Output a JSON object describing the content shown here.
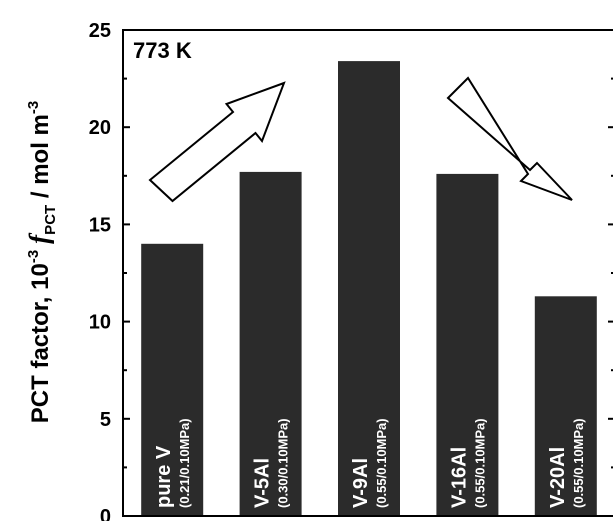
{
  "chart_data": {
    "type": "bar",
    "categories": [
      "pure V",
      "V-5Al",
      "V-9Al",
      "V-16Al",
      "V-20Al"
    ],
    "conditions": [
      "(0.21/0.10MPa)",
      "(0.30/0.10MPa)",
      "(0.55/0.10MPa)",
      "(0.55/0.10MPa)",
      "(0.55/0.10MPa)"
    ],
    "values": [
      14.0,
      17.7,
      23.4,
      17.6,
      11.3
    ],
    "ylim": [
      0,
      25
    ],
    "yticks": [
      0,
      5,
      10,
      15,
      20,
      25
    ],
    "ylabel": {
      "prefix": "PCT factor, 10",
      "exponent": "-3",
      "symbol": "f",
      "subscript": "PCT",
      "unit": " / mol m",
      "unit_exponent": "-3"
    },
    "annotation": "773 K",
    "grid": false,
    "colors": {
      "bar": "#2b2b2b",
      "bar_text": "#ffffff",
      "arrow_fill": "#ffffff",
      "arrow_stroke": "#000000"
    }
  }
}
